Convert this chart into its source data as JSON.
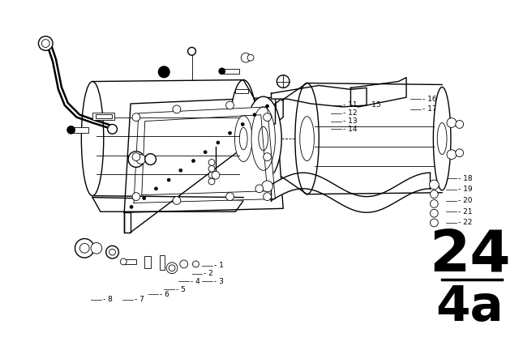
{
  "background_color": "#ffffff",
  "diagram_number": "24",
  "diagram_sub": "4a",
  "fig_width": 6.4,
  "fig_height": 4.48,
  "dpi": 100,
  "line_color": "#000000",
  "text_color": "#000000",
  "label_fontsize": 6.5,
  "diagram_num_fontsize": 52,
  "diagram_sub_fontsize": 44
}
